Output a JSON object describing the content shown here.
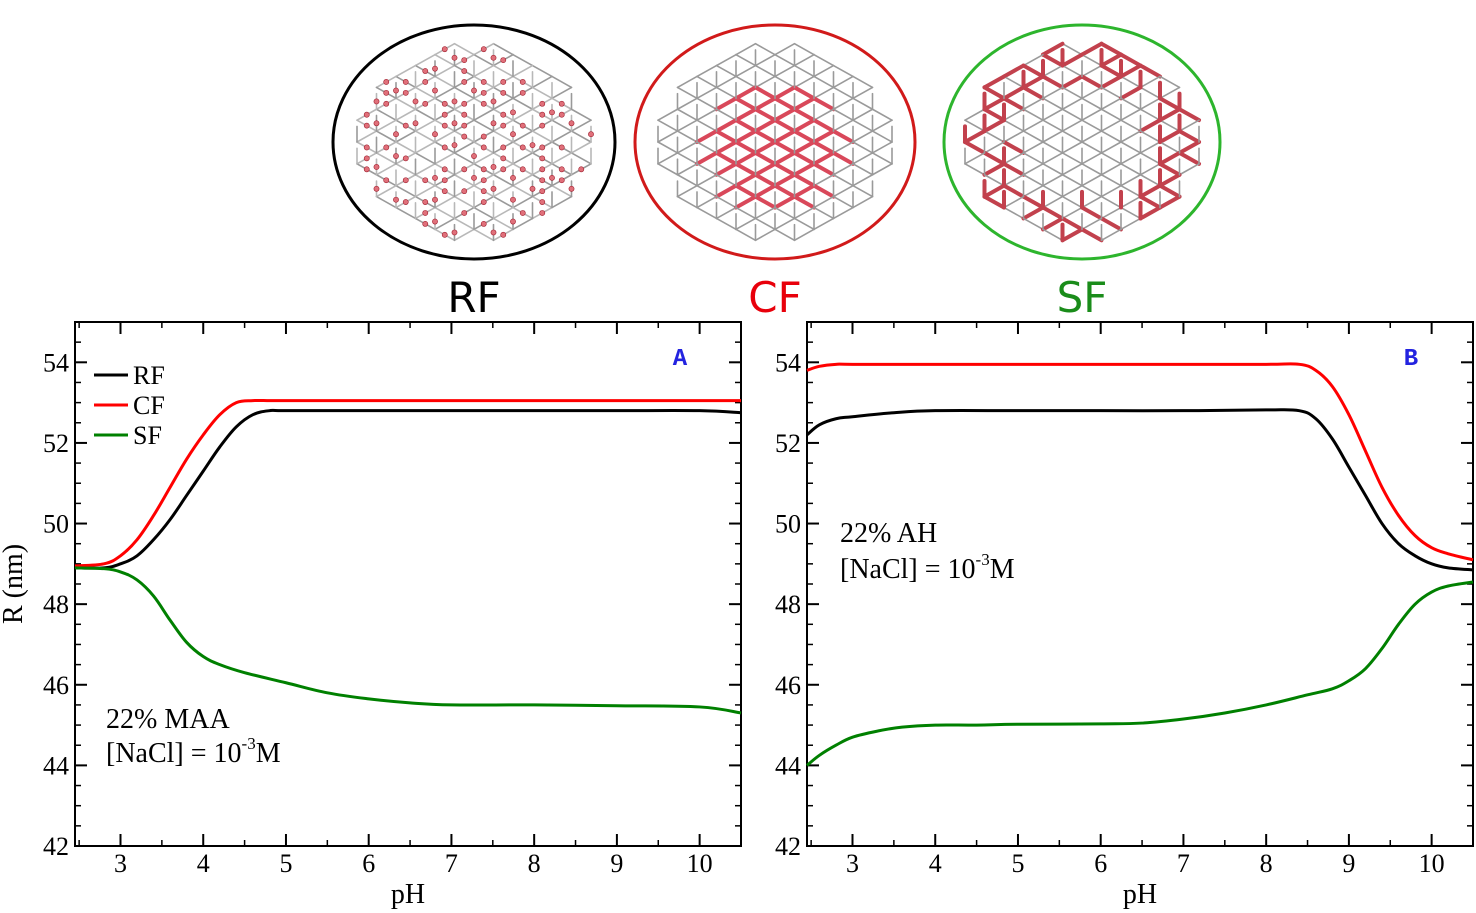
{
  "molecules": [
    {
      "label": "RF",
      "color": "#000000",
      "ring_color": "#000000",
      "style": "balls"
    },
    {
      "label": "CF",
      "color": "#e8000b",
      "ring_color": "#d11a1a",
      "style": "core"
    },
    {
      "label": "SF",
      "color": "#1a8c1a",
      "ring_color": "#2db52d",
      "style": "shell"
    }
  ],
  "chart_data": [
    {
      "type": "line",
      "panel_label": "A",
      "panel_label_color": "#2323e0",
      "xlabel": "pH",
      "ylabel": "R (nm)",
      "xlim": [
        2.45,
        10.5
      ],
      "ylim": [
        42,
        55
      ],
      "xticks": [
        3,
        4,
        5,
        6,
        7,
        8,
        9,
        10
      ],
      "yticks": [
        42,
        44,
        46,
        48,
        50,
        52,
        54
      ],
      "legend_position": "top-left",
      "annotation_lines": [
        "22% MAA",
        "[NaCl] = 10",
        "-3",
        "M"
      ],
      "series": [
        {
          "name": "RF",
          "color": "#000000",
          "x": [
            2.45,
            2.8,
            3.0,
            3.2,
            3.4,
            3.6,
            3.8,
            4.0,
            4.2,
            4.4,
            4.6,
            4.8,
            5.0,
            6.0,
            7.0,
            8.0,
            9.0,
            10.0,
            10.5
          ],
          "y": [
            48.9,
            48.9,
            49.0,
            49.2,
            49.6,
            50.1,
            50.7,
            51.3,
            51.9,
            52.4,
            52.7,
            52.8,
            52.8,
            52.8,
            52.8,
            52.8,
            52.8,
            52.8,
            52.75
          ]
        },
        {
          "name": "CF",
          "color": "#ff0000",
          "x": [
            2.45,
            2.8,
            3.0,
            3.2,
            3.4,
            3.6,
            3.8,
            4.0,
            4.2,
            4.4,
            4.6,
            4.8,
            5.0,
            6.0,
            7.0,
            8.0,
            9.0,
            10.0,
            10.5
          ],
          "y": [
            48.95,
            49.0,
            49.2,
            49.6,
            50.2,
            50.9,
            51.6,
            52.2,
            52.7,
            53.0,
            53.05,
            53.05,
            53.05,
            53.05,
            53.05,
            53.05,
            53.05,
            53.05,
            53.05
          ]
        },
        {
          "name": "SF",
          "color": "#008000",
          "x": [
            2.45,
            2.8,
            3.0,
            3.2,
            3.4,
            3.6,
            3.8,
            4.0,
            4.2,
            4.5,
            5.0,
            5.5,
            6.0,
            6.5,
            7.0,
            8.0,
            9.0,
            10.0,
            10.5
          ],
          "y": [
            48.9,
            48.88,
            48.8,
            48.6,
            48.2,
            47.6,
            47.05,
            46.7,
            46.5,
            46.3,
            46.05,
            45.8,
            45.65,
            45.55,
            45.5,
            45.5,
            45.48,
            45.45,
            45.3
          ]
        }
      ]
    },
    {
      "type": "line",
      "panel_label": "B",
      "panel_label_color": "#2323e0",
      "xlabel": "pH",
      "ylabel": "",
      "xlim": [
        2.45,
        10.5
      ],
      "ylim": [
        42,
        55
      ],
      "xticks": [
        3,
        4,
        5,
        6,
        7,
        8,
        9,
        10
      ],
      "yticks": [
        42,
        44,
        46,
        48,
        50,
        52,
        54
      ],
      "legend_position": "",
      "annotation_lines": [
        "22% AH",
        "[NaCl] = 10",
        "-3",
        "M"
      ],
      "series": [
        {
          "name": "RF",
          "color": "#000000",
          "x": [
            2.45,
            2.6,
            2.8,
            3.0,
            3.5,
            4.0,
            5.0,
            6.0,
            7.0,
            8.0,
            8.4,
            8.6,
            8.8,
            9.0,
            9.2,
            9.4,
            9.6,
            9.8,
            10.0,
            10.2,
            10.5
          ],
          "y": [
            52.2,
            52.45,
            52.6,
            52.65,
            52.75,
            52.8,
            52.8,
            52.8,
            52.8,
            52.82,
            52.8,
            52.6,
            52.1,
            51.4,
            50.7,
            50.0,
            49.5,
            49.2,
            49.0,
            48.9,
            48.85
          ]
        },
        {
          "name": "CF",
          "color": "#ff0000",
          "x": [
            2.45,
            2.6,
            2.8,
            3.0,
            4.0,
            5.0,
            6.0,
            7.0,
            8.0,
            8.4,
            8.6,
            8.8,
            9.0,
            9.2,
            9.4,
            9.6,
            9.8,
            10.0,
            10.2,
            10.5
          ],
          "y": [
            53.8,
            53.9,
            53.95,
            53.95,
            53.95,
            53.95,
            53.95,
            53.95,
            53.95,
            53.95,
            53.8,
            53.4,
            52.7,
            51.8,
            50.9,
            50.2,
            49.7,
            49.4,
            49.25,
            49.1
          ]
        },
        {
          "name": "SF",
          "color": "#008000",
          "x": [
            2.45,
            2.6,
            2.8,
            3.0,
            3.3,
            3.6,
            4.0,
            4.5,
            5.0,
            6.0,
            6.5,
            7.0,
            7.5,
            8.0,
            8.5,
            8.8,
            9.0,
            9.2,
            9.4,
            9.6,
            9.8,
            10.0,
            10.2,
            10.5
          ],
          "y": [
            44.0,
            44.25,
            44.5,
            44.7,
            44.85,
            44.95,
            45.0,
            45.0,
            45.02,
            45.03,
            45.05,
            45.15,
            45.3,
            45.5,
            45.75,
            45.9,
            46.1,
            46.4,
            46.9,
            47.5,
            48.0,
            48.3,
            48.45,
            48.55
          ]
        }
      ]
    }
  ]
}
